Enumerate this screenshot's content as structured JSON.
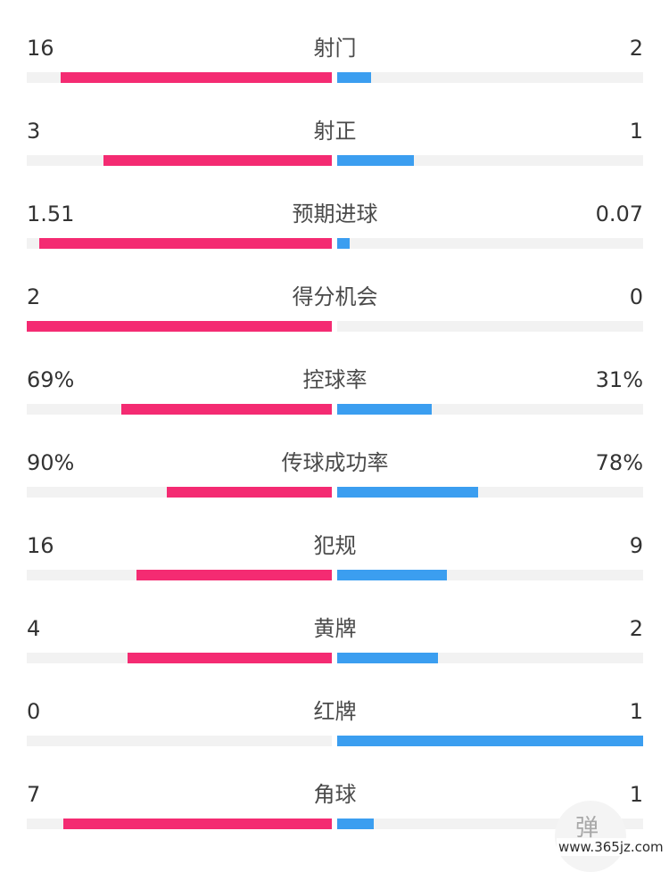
{
  "colors": {
    "home_bar": "#f42b72",
    "away_bar": "#3b9ef0",
    "track": "#f2f2f2",
    "text": "#333333"
  },
  "stats": [
    {
      "label": "射门",
      "left": "16",
      "right": "2",
      "left_fill": 0.89,
      "right_fill": 0.11
    },
    {
      "label": "射正",
      "left": "3",
      "right": "1",
      "left_fill": 0.75,
      "right_fill": 0.25
    },
    {
      "label": "预期进球",
      "left": "1.51",
      "right": "0.07",
      "left_fill": 0.96,
      "right_fill": 0.04
    },
    {
      "label": "得分机会",
      "left": "2",
      "right": "0",
      "left_fill": 1.0,
      "right_fill": 0.0
    },
    {
      "label": "控球率",
      "left": "69%",
      "right": "31%",
      "left_fill": 0.69,
      "right_fill": 0.31
    },
    {
      "label": "传球成功率",
      "left": "90%",
      "right": "78%",
      "left_fill": 0.54,
      "right_fill": 0.46
    },
    {
      "label": "犯规",
      "left": "16",
      "right": "9",
      "left_fill": 0.64,
      "right_fill": 0.36
    },
    {
      "label": "黄牌",
      "left": "4",
      "right": "2",
      "left_fill": 0.67,
      "right_fill": 0.33
    },
    {
      "label": "红牌",
      "left": "0",
      "right": "1",
      "left_fill": 0.0,
      "right_fill": 1.0
    },
    {
      "label": "角球",
      "left": "7",
      "right": "1",
      "left_fill": 0.88,
      "right_fill": 0.12
    }
  ],
  "watermark": {
    "char": "弹",
    "site": "www.365jz.com"
  }
}
